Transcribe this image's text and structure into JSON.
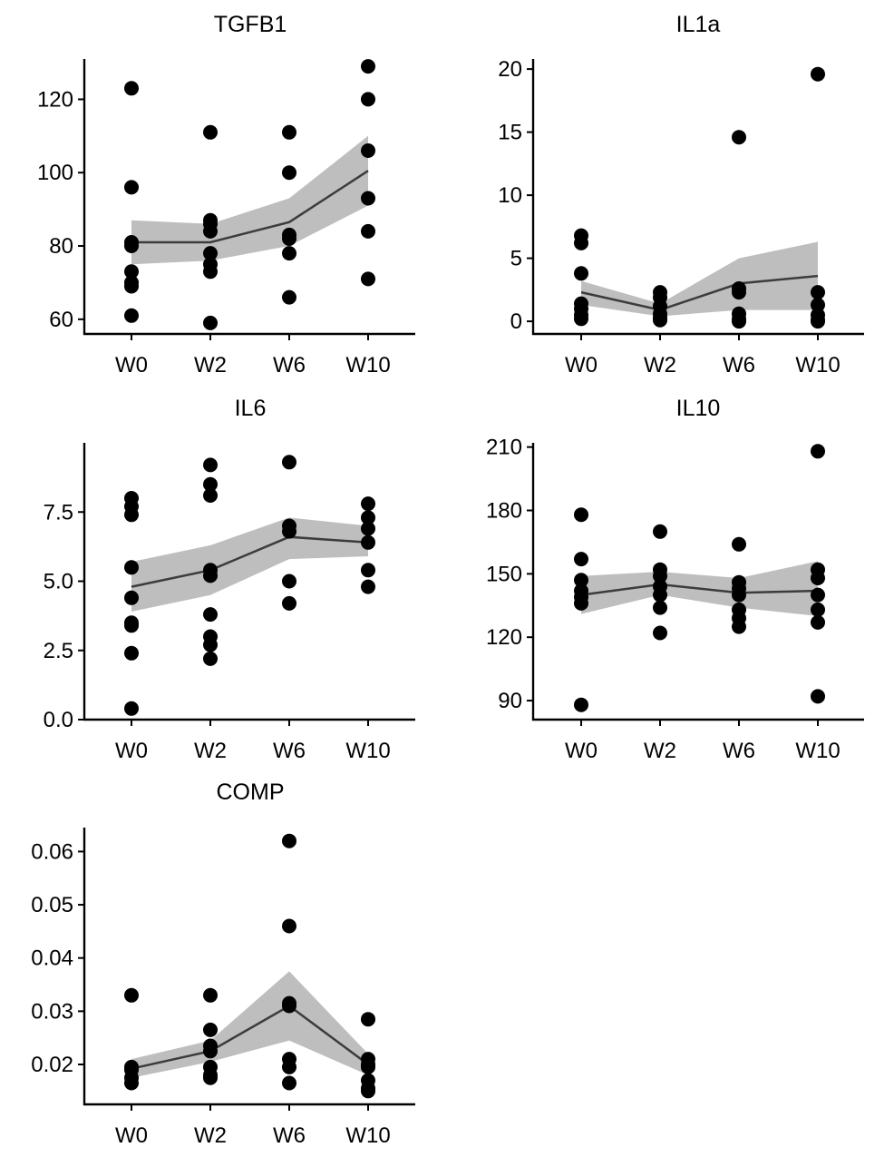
{
  "chart_data": [
    {
      "type": "scatter",
      "title": "TGFB1",
      "categories": [
        "W0",
        "W2",
        "W6",
        "W10"
      ],
      "ylim": [
        56,
        131
      ],
      "yticks": [
        60,
        80,
        100,
        120
      ],
      "ytick_labels": [
        "60",
        "80",
        "100",
        "120"
      ],
      "points": [
        [
          123,
          96,
          81,
          80,
          73,
          70,
          69,
          61
        ],
        [
          111,
          87,
          86,
          84,
          78,
          75,
          73,
          59
        ],
        [
          111,
          100,
          83,
          82,
          78,
          66
        ],
        [
          129,
          120,
          106,
          93,
          84,
          71
        ]
      ],
      "mean": [
        81,
        81,
        86.5,
        100.5
      ],
      "band_low": [
        75,
        76,
        80,
        91
      ],
      "band_high": [
        87,
        86,
        93,
        110
      ]
    },
    {
      "type": "scatter",
      "title": "IL1a",
      "categories": [
        "W0",
        "W2",
        "W6",
        "W10"
      ],
      "ylim": [
        -1,
        20.8
      ],
      "yticks": [
        0,
        5,
        10,
        15,
        20
      ],
      "ytick_labels": [
        "0",
        "5",
        "10",
        "15",
        "20"
      ],
      "points": [
        [
          6.8,
          6.2,
          3.8,
          1.4,
          1.0,
          0.5,
          0.2
        ],
        [
          2.3,
          1.9,
          1.2,
          0.6,
          0.3,
          0.1
        ],
        [
          14.6,
          2.6,
          2.3,
          0.6,
          0.2,
          0.0
        ],
        [
          19.6,
          2.3,
          1.3,
          0.5,
          0.1,
          0.0
        ]
      ],
      "mean": [
        2.3,
        0.9,
        3.0,
        3.6
      ],
      "band_low": [
        1.3,
        0.4,
        0.9,
        0.9
      ],
      "band_high": [
        3.2,
        1.4,
        5.0,
        6.3
      ]
    },
    {
      "type": "scatter",
      "title": "IL6",
      "categories": [
        "W0",
        "W2",
        "W6",
        "W10"
      ],
      "ylim": [
        0,
        10
      ],
      "yticks": [
        0,
        2.5,
        5,
        7.5
      ],
      "ytick_labels": [
        "0.0",
        "2.5",
        "5.0",
        "7.5"
      ],
      "points": [
        [
          8.0,
          7.7,
          7.4,
          5.5,
          4.4,
          3.5,
          3.4,
          2.4,
          0.4
        ],
        [
          9.2,
          8.5,
          8.1,
          5.4,
          5.2,
          3.8,
          3.0,
          2.7,
          2.2
        ],
        [
          9.3,
          7.0,
          6.8,
          5.0,
          4.2
        ],
        [
          7.8,
          7.3,
          6.9,
          6.4,
          5.4,
          4.8
        ]
      ],
      "mean": [
        4.8,
        5.4,
        6.6,
        6.4
      ],
      "band_low": [
        3.9,
        4.5,
        5.8,
        5.9
      ],
      "band_high": [
        5.7,
        6.3,
        7.3,
        7.0
      ]
    },
    {
      "type": "scatter",
      "title": "IL10",
      "categories": [
        "W0",
        "W2",
        "W6",
        "W10"
      ],
      "ylim": [
        81,
        212
      ],
      "yticks": [
        90,
        120,
        150,
        180,
        210
      ],
      "ytick_labels": [
        "90",
        "120",
        "150",
        "180",
        "210"
      ],
      "points": [
        [
          178,
          157,
          147,
          142,
          139,
          136,
          88
        ],
        [
          170,
          152,
          149,
          144,
          140,
          134,
          122
        ],
        [
          164,
          146,
          143,
          140,
          133,
          129,
          125
        ],
        [
          208,
          152,
          148,
          140,
          133,
          127,
          92
        ]
      ],
      "mean": [
        140,
        145,
        141,
        142
      ],
      "band_low": [
        131,
        140,
        134,
        130
      ],
      "band_high": [
        149,
        151,
        148,
        156
      ]
    },
    {
      "type": "scatter",
      "title": "COMP",
      "categories": [
        "W0",
        "W2",
        "W6",
        "W10"
      ],
      "ylim": [
        0.0125,
        0.0645
      ],
      "yticks": [
        0.02,
        0.03,
        0.04,
        0.05,
        0.06
      ],
      "ytick_labels": [
        "0.02",
        "0.03",
        "0.04",
        "0.05",
        "0.06"
      ],
      "points": [
        [
          0.033,
          0.0195,
          0.019,
          0.0175,
          0.0165
        ],
        [
          0.033,
          0.0265,
          0.0235,
          0.0225,
          0.0195,
          0.018,
          0.0175
        ],
        [
          0.062,
          0.046,
          0.0315,
          0.031,
          0.021,
          0.0195,
          0.0165
        ],
        [
          0.0285,
          0.021,
          0.02,
          0.0195,
          0.017,
          0.0155,
          0.015
        ]
      ],
      "mean": [
        0.0192,
        0.0225,
        0.031,
        0.02
      ],
      "band_low": [
        0.0175,
        0.0205,
        0.0245,
        0.018
      ],
      "band_high": [
        0.021,
        0.0245,
        0.0375,
        0.022
      ]
    }
  ]
}
